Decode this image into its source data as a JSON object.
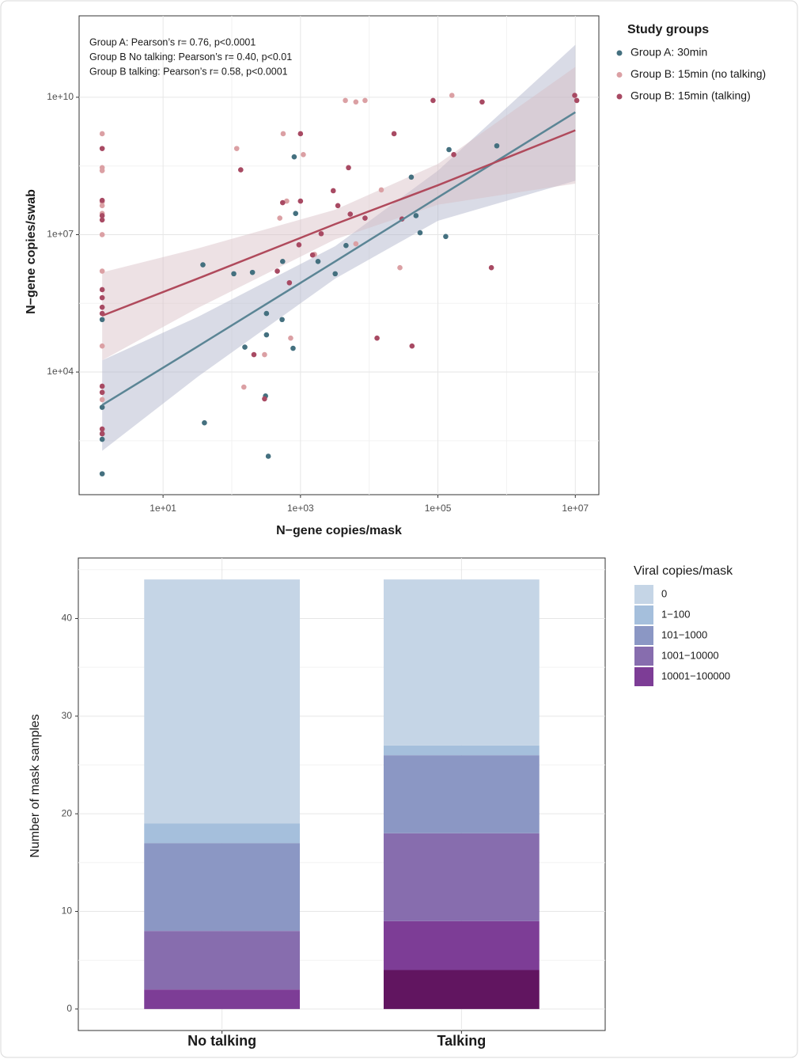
{
  "chart_data": [
    {
      "type": "scatter",
      "annotations": [
        "Group A: Pearson’s r= 0.76, p<0.0001",
        "Group B No talking: Pearson’s r= 0.40, p<0.01",
        "Group B talking: Pearson’s r= 0.58, p<0.0001"
      ],
      "x_label": "N−gene copies/mask",
      "y_label": "N−gene copies/swab",
      "legend_title": "Study groups",
      "xscale": "log",
      "yscale": "log",
      "xlim": [
        0.6,
        22000000.0
      ],
      "ylim": [
        21,
        600000000000.0
      ],
      "xticks": [
        {
          "value": 10,
          "label": "1e+01"
        },
        {
          "value": 1000,
          "label": "1e+03"
        },
        {
          "value": 100000,
          "label": "1e+05"
        },
        {
          "value": 10000000,
          "label": "1e+07"
        }
      ],
      "yticks": [
        {
          "value": 10000,
          "label": "1e+04"
        },
        {
          "value": 10000000,
          "label": "1e+07"
        },
        {
          "value": 10000000000,
          "label": "1e+10"
        }
      ],
      "minor_xticks": [
        100,
        10000,
        1000000
      ],
      "minor_yticks": [
        316,
        316000,
        316000000.0
      ],
      "grid": true,
      "series": [
        {
          "name": "Group A:  30min",
          "color": "#44707f",
          "x": [
            810,
            145000.0,
            720000.0,
            41000.0,
            48000.0,
            850,
            55000.0,
            130000.0,
            4600,
            1800,
            550,
            38,
            107,
            200,
            3200,
            320,
            540,
            320,
            155,
            780,
            310,
            40,
            340,
            1.3,
            1.3,
            1.3,
            1.3,
            1.3
          ],
          "y": [
            500000000.0,
            720000000.0,
            870000000.0,
            180000000.0,
            26000000.0,
            29000000.0,
            11000000.0,
            9100000.0,
            5800000.0,
            2600000.0,
            2600000.0,
            2200000.0,
            1400000.0,
            1500000.0,
            1400000.0,
            190000.0,
            140000.0,
            65000.0,
            35000.0,
            33000.0,
            3000,
            780,
            145,
            140000.0,
            1700,
            340,
            450,
            60
          ],
          "fit": {
            "color": "#5b8595",
            "band_color": "#aab0c8",
            "x": [
              1.3,
              32,
              3200,
              100000.0,
              10000000.0
            ],
            "y": [
              1900,
              36300,
              2600000.0,
              65000000.0,
              4700000000.0
            ],
            "upper": [
              18000,
              160000.0,
              5600000.0,
              250000000.0,
              140000000000.0
            ],
            "lower": [
              190,
              7900,
              1100000.0,
              20000000.0,
              150000000.0
            ]
          }
        },
        {
          "name": "Group B:  15min (no talking)",
          "color": "#dba0a4",
          "x": [
            1.3,
            1.3,
            1.3,
            1.3,
            1.3,
            1.3,
            1.3,
            1.3,
            1.3,
            1.3,
            118,
            560,
            1100,
            4500,
            6400,
            8700,
            160000.0,
            630,
            500,
            15000.0,
            1600,
            6400,
            28000.0,
            720,
            300,
            150
          ],
          "y": [
            1600000000.0,
            290000000.0,
            250000000.0,
            52000000.0,
            43000000.0,
            29000000.0,
            10000000.0,
            1600000.0,
            37000.0,
            2500,
            760000000.0,
            1600000000.0,
            560000000.0,
            8500000000.0,
            7900000000.0,
            8500000000.0,
            11000000000.0,
            54000000.0,
            23000000.0,
            95000000.0,
            3700000.0,
            6300000.0,
            1900000.0,
            55000.0,
            24000.0,
            4700
          ]
        },
        {
          "name": "Group B:  15min (talking)",
          "color": "#a84a63",
          "x": [
            1.3,
            1.3,
            1.3,
            1.3,
            1.3,
            1.3,
            1.3,
            1.3,
            1.3,
            1.3,
            1.3,
            1.3,
            135,
            1000,
            1000,
            550,
            5000,
            3000,
            3500,
            2000,
            950,
            1500,
            5300,
            8700,
            460,
            690,
            23000.0,
            30000.0,
            85000.0,
            170000.0,
            440000.0,
            600000.0,
            9800000.0,
            10500000.0,
            13000.0,
            42000.0,
            210,
            300
          ],
          "y": [
            760000000.0,
            56000000.0,
            26000000.0,
            21000000.0,
            630000.0,
            420000.0,
            260000.0,
            190000.0,
            4900,
            3600,
            570,
            450,
            260000000.0,
            1600000000.0,
            54000000.0,
            50000000.0,
            290000000.0,
            91000000.0,
            43000000.0,
            10500000.0,
            6000000.0,
            3600000.0,
            28000000.0,
            23000000.0,
            1600000.0,
            890000.0,
            1600000000.0,
            22000000.0,
            8500000000.0,
            560000000.0,
            7900000000.0,
            1900000.0,
            11000000000.0,
            8500000000.0,
            55000.0,
            37000.0,
            24000.0,
            2600
          ],
          "fit": {
            "color": "#b04a5c",
            "band_color": "#d8bcc3",
            "x": [
              1.3,
              32,
              3200,
              100000.0,
              10000000.0
            ],
            "y": [
              170000.0,
              1100000.0,
              17000000.0,
              120000000.0,
              1900000000.0
            ],
            "upper": [
              1500000.0,
              5000000.0,
              35000000.0,
              350000000.0,
              46000000000.0
            ],
            "lower": [
              18000,
              250000.0,
              7900000.0,
              45000000.0,
              130000000.0
            ]
          }
        }
      ]
    },
    {
      "type": "bar",
      "stacked": true,
      "y_label": "Number of mask samples",
      "legend_title": "Viral copies/mask",
      "categories": [
        "No talking",
        "Talking"
      ],
      "ylim": [
        -2.2,
        46.2
      ],
      "yticks": [
        0,
        10,
        20,
        30,
        40
      ],
      "minor_yticks": [
        5,
        15,
        25,
        35,
        45
      ],
      "grid": true,
      "series": [
        {
          "name": null,
          "color": "#611560",
          "values": [
            0,
            4
          ]
        },
        {
          "name": "10001−100000",
          "color": "#7d3d96",
          "values": [
            2,
            5
          ]
        },
        {
          "name": "1001−10000",
          "color": "#876dae",
          "values": [
            6,
            9
          ]
        },
        {
          "name": "101−1000",
          "color": "#8b97c4",
          "values": [
            9,
            8
          ]
        },
        {
          "name": "1−100",
          "color": "#a5bfdc",
          "values": [
            2,
            1
          ]
        },
        {
          "name": "0",
          "color": "#c5d5e6",
          "values": [
            25,
            17
          ]
        }
      ]
    }
  ]
}
